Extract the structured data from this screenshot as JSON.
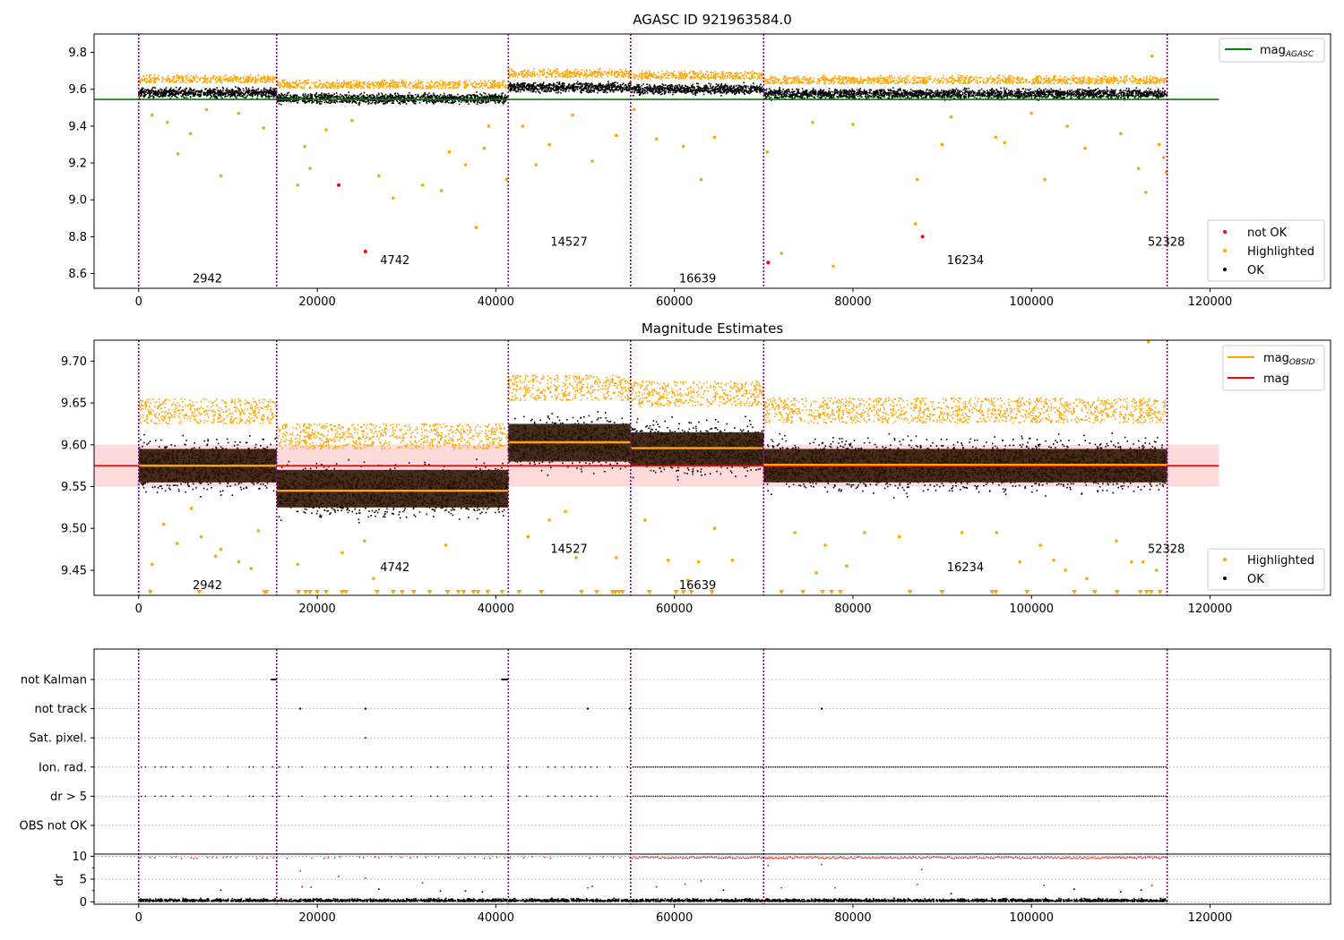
{
  "chart_data": [
    {
      "type": "scatter",
      "title": "AGASC ID 921963584.0",
      "xlim": [
        -5000,
        133500
      ],
      "ylim": [
        8.52,
        9.9
      ],
      "xticks": [
        "0",
        "20000",
        "40000",
        "60000",
        "80000",
        "100000",
        "120000"
      ],
      "xtick_values": [
        0,
        20000,
        40000,
        60000,
        80000,
        100000,
        120000
      ],
      "yticks": [
        "8.6",
        "8.8",
        "9.0",
        "9.2",
        "9.4",
        "9.6",
        "9.8"
      ],
      "ytick_values": [
        8.6,
        8.8,
        9.0,
        9.2,
        9.4,
        9.6,
        9.8
      ],
      "obs_boundaries": [
        0,
        15450,
        41400,
        55100,
        70000,
        115200
      ],
      "segments": [
        {
          "label": "2942",
          "x": 7700,
          "y": 8.57
        },
        {
          "label": "4742",
          "x": 28700,
          "y": 8.67
        },
        {
          "label": "14527",
          "x": 48200,
          "y": 8.77
        },
        {
          "label": "16639",
          "x": 62600,
          "y": 8.57
        },
        {
          "label": "16234",
          "x": 92600,
          "y": 8.67
        },
        {
          "label": "52328",
          "x": 115100,
          "y": 8.77
        }
      ],
      "mag_agasc": 9.545,
      "mag_agasc_xrange": [
        -5000,
        121000
      ],
      "band_means": [
        9.58,
        9.55,
        9.61,
        9.6,
        9.575
      ],
      "series": [
        {
          "name": "not OK",
          "color": "#ff0000"
        },
        {
          "name": "Highlighted",
          "color": "#ffa500"
        },
        {
          "name": "OK",
          "color": "#000000"
        }
      ],
      "not_ok_points": [
        [
          22400,
          9.08
        ],
        [
          25400,
          8.72
        ],
        [
          70500,
          8.66
        ],
        [
          87800,
          8.8
        ]
      ],
      "highlighted_outliers": [
        [
          1500,
          9.46
        ],
        [
          3200,
          9.42
        ],
        [
          4400,
          9.25
        ],
        [
          5800,
          9.36
        ],
        [
          7600,
          9.49
        ],
        [
          9200,
          9.13
        ],
        [
          11200,
          9.47
        ],
        [
          14000,
          9.39
        ],
        [
          17800,
          9.08
        ],
        [
          18600,
          9.29
        ],
        [
          19200,
          9.17
        ],
        [
          21000,
          9.38
        ],
        [
          23900,
          9.43
        ],
        [
          26900,
          9.13
        ],
        [
          28500,
          9.01
        ],
        [
          31800,
          9.08
        ],
        [
          33900,
          9.05
        ],
        [
          34800,
          9.26
        ],
        [
          36600,
          9.19
        ],
        [
          37800,
          8.85
        ],
        [
          38700,
          9.28
        ],
        [
          39200,
          9.4
        ],
        [
          41200,
          9.11
        ],
        [
          43000,
          9.4
        ],
        [
          44500,
          9.19
        ],
        [
          46000,
          9.3
        ],
        [
          48600,
          9.46
        ],
        [
          50800,
          9.21
        ],
        [
          53500,
          9.35
        ],
        [
          55500,
          9.49
        ],
        [
          58000,
          9.33
        ],
        [
          61000,
          9.29
        ],
        [
          63000,
          9.11
        ],
        [
          64500,
          9.34
        ],
        [
          70400,
          9.26
        ],
        [
          72000,
          8.71
        ],
        [
          75500,
          9.42
        ],
        [
          77800,
          8.64
        ],
        [
          80000,
          9.41
        ],
        [
          87000,
          8.87
        ],
        [
          87200,
          9.11
        ],
        [
          90000,
          9.3
        ],
        [
          91000,
          9.45
        ],
        [
          96000,
          9.34
        ],
        [
          97000,
          9.31
        ],
        [
          100000,
          9.47
        ],
        [
          101500,
          9.11
        ],
        [
          104000,
          9.4
        ],
        [
          106000,
          9.28
        ],
        [
          110000,
          9.36
        ],
        [
          112000,
          9.17
        ],
        [
          112800,
          9.04
        ],
        [
          113500,
          9.78
        ],
        [
          114300,
          9.3
        ],
        [
          114800,
          9.23
        ],
        [
          115100,
          9.15
        ]
      ],
      "legend_top": {
        "label": "mag",
        "sub": "AGASC",
        "color": "#008000",
        "placement": "top-right"
      },
      "legend_bottom_placement": "lower-right"
    },
    {
      "type": "scatter",
      "title": "Magnitude Estimates",
      "xlim": [
        -5000,
        133500
      ],
      "ylim": [
        9.42,
        9.725
      ],
      "xticks": [
        "0",
        "20000",
        "40000",
        "60000",
        "80000",
        "100000",
        "120000"
      ],
      "xtick_values": [
        0,
        20000,
        40000,
        60000,
        80000,
        100000,
        120000
      ],
      "yticks": [
        "9.45",
        "9.50",
        "9.55",
        "9.60",
        "9.65",
        "9.70"
      ],
      "ytick_values": [
        9.45,
        9.5,
        9.55,
        9.6,
        9.65,
        9.7
      ],
      "obs_boundaries": [
        0,
        15450,
        41400,
        55100,
        70000,
        115200
      ],
      "segments": [
        {
          "label": "2942",
          "x": 7700,
          "y": 9.432
        },
        {
          "label": "4742",
          "x": 28700,
          "y": 9.453
        },
        {
          "label": "14527",
          "x": 48200,
          "y": 9.475
        },
        {
          "label": "16639",
          "x": 62600,
          "y": 9.432
        },
        {
          "label": "16234",
          "x": 92600,
          "y": 9.453
        },
        {
          "label": "52328",
          "x": 115100,
          "y": 9.475
        }
      ],
      "mag": 9.575,
      "mag_band": [
        9.55,
        9.6
      ],
      "mag_xrange": [
        -5000,
        121000
      ],
      "mag_obsid": [
        {
          "x0": 0,
          "x1": 15450,
          "mean": 9.575,
          "band": [
            9.555,
            9.595
          ]
        },
        {
          "x0": 15450,
          "x1": 41400,
          "mean": 9.545,
          "band": [
            9.525,
            9.57
          ]
        },
        {
          "x0": 41400,
          "x1": 55100,
          "mean": 9.603,
          "band": [
            9.58,
            9.625
          ]
        },
        {
          "x0": 55100,
          "x1": 70000,
          "mean": 9.596,
          "band": [
            9.575,
            9.615
          ]
        },
        {
          "x0": 70000,
          "x1": 115200,
          "mean": 9.576,
          "band": [
            9.555,
            9.595
          ]
        }
      ],
      "series": [
        {
          "name": "Highlighted",
          "color": "#ffa500"
        },
        {
          "name": "OK",
          "color": "#000000"
        }
      ],
      "legend_top": [
        {
          "label": "mag",
          "sub": "OBSID",
          "color": "#ffa500"
        },
        {
          "label": "mag",
          "sub": "",
          "color": "#ff0000"
        }
      ],
      "legend_top_placement": "top-right",
      "legend_bottom_placement": "lower-right",
      "highlighted_outliers": [
        [
          1500,
          9.457
        ],
        [
          2800,
          9.505
        ],
        [
          4300,
          9.482
        ],
        [
          5900,
          9.524
        ],
        [
          7000,
          9.49
        ],
        [
          8600,
          9.467
        ],
        [
          9200,
          9.475
        ],
        [
          11200,
          9.46
        ],
        [
          12600,
          9.452
        ],
        [
          13400,
          9.497
        ],
        [
          17800,
          9.457
        ],
        [
          22800,
          9.471
        ],
        [
          25300,
          9.485
        ],
        [
          26300,
          9.44
        ],
        [
          34400,
          9.48
        ],
        [
          43600,
          9.49
        ],
        [
          46000,
          9.51
        ],
        [
          47800,
          9.52
        ],
        [
          49000,
          9.465
        ],
        [
          53500,
          9.465
        ],
        [
          56700,
          9.51
        ],
        [
          59300,
          9.462
        ],
        [
          61500,
          9.438
        ],
        [
          62700,
          9.46
        ],
        [
          64500,
          9.5
        ],
        [
          66500,
          9.462
        ],
        [
          73500,
          9.495
        ],
        [
          75900,
          9.447
        ],
        [
          76900,
          9.48
        ],
        [
          79300,
          9.455
        ],
        [
          81300,
          9.495
        ],
        [
          85200,
          9.49
        ],
        [
          92200,
          9.495
        ],
        [
          96100,
          9.495
        ],
        [
          98700,
          9.46
        ],
        [
          101000,
          9.48
        ],
        [
          102500,
          9.462
        ],
        [
          103800,
          9.45
        ],
        [
          106200,
          9.44
        ],
        [
          109500,
          9.485
        ],
        [
          111200,
          9.46
        ],
        [
          112500,
          9.46
        ],
        [
          113100,
          9.723
        ],
        [
          114000,
          9.45
        ]
      ],
      "low_markers_x": [
        1300,
        6800,
        14100,
        14300,
        17900,
        18700,
        19200,
        20000,
        21000,
        22800,
        23200,
        26700,
        28500,
        29500,
        30800,
        32600,
        34600,
        35800,
        36400,
        37500,
        38000,
        39100,
        40700,
        42600,
        45100,
        49600,
        51300,
        53100,
        53400,
        53800,
        54200,
        57200,
        60200,
        61000,
        61900,
        64200,
        72000,
        74400,
        76600,
        77600,
        78600,
        86400,
        90000,
        95600,
        96000,
        99500,
        104800,
        107100,
        109600,
        112200,
        112900,
        113400,
        114400
      ]
    },
    {
      "type": "scatter",
      "title": "",
      "xlim": [
        -5000,
        133500
      ],
      "xticks": [
        "0",
        "20000",
        "40000",
        "60000",
        "80000",
        "100000",
        "120000"
      ],
      "xtick_values": [
        0,
        20000,
        40000,
        60000,
        80000,
        100000,
        120000
      ],
      "obs_boundaries": [
        0,
        15450,
        41400,
        55100,
        70000,
        115200
      ],
      "flag_rows": [
        "not Kalman",
        "not track",
        "Sat. pixel.",
        "Ion. rad.",
        "dr > 5",
        "OBS not OK"
      ],
      "flag_points": {
        "not Kalman": [
          [
            14800,
            15450
          ],
          [
            40600,
            41400
          ]
        ],
        "not track": [
          18100,
          25400,
          50300,
          55000,
          76500
        ],
        "Sat. pixel.": [
          25400
        ]
      },
      "dr_ylabel": "dr",
      "dr_yticks": [
        "0",
        "5",
        "10"
      ],
      "dr_ytick_values": [
        0,
        5,
        10
      ],
      "dr_ylim": [
        -0.5,
        10.5
      ],
      "dr_outliers": [
        [
          9200,
          2.6
        ],
        [
          18100,
          6.8
        ],
        [
          18300,
          3.3
        ],
        [
          19300,
          3.2
        ],
        [
          22400,
          5.6
        ],
        [
          25400,
          5.2
        ],
        [
          26900,
          2.8
        ],
        [
          31800,
          4.2
        ],
        [
          33800,
          2.4
        ],
        [
          36600,
          2.4
        ],
        [
          38500,
          2.2
        ],
        [
          50300,
          3.1
        ],
        [
          50800,
          3.4
        ],
        [
          58000,
          3.3
        ],
        [
          61200,
          3.9
        ],
        [
          63000,
          4.6
        ],
        [
          65500,
          2.6
        ],
        [
          70500,
          8.0
        ],
        [
          72000,
          3.1
        ],
        [
          76500,
          8.2
        ],
        [
          78000,
          3.1
        ],
        [
          87700,
          7.1
        ],
        [
          87200,
          3.8
        ],
        [
          91000,
          1.8
        ],
        [
          101400,
          3.6
        ],
        [
          104800,
          2.8
        ],
        [
          110000,
          2.2
        ],
        [
          112300,
          2.6
        ],
        [
          113500,
          3.6
        ]
      ]
    }
  ]
}
